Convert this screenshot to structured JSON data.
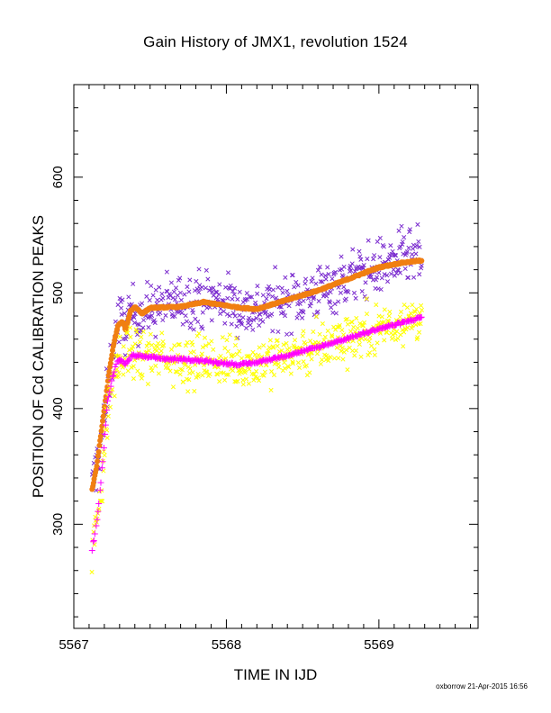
{
  "chart_data": {
    "type": "scatter",
    "title": "Gain History of JMX1, revolution 1524",
    "xlabel": "TIME IN IJD",
    "ylabel": "POSITION OF Cd CALIBRATION PEAKS",
    "xlim": [
      5567.0,
      5569.65
    ],
    "ylim": [
      210,
      680
    ],
    "xticks": [
      "5567",
      "5568",
      "5569"
    ],
    "yticks": [
      "300",
      "400",
      "500",
      "600"
    ],
    "grid": false,
    "legend": "none",
    "series": [
      {
        "marker": "x",
        "color": "#7b2ccf",
        "anchors": [
          [
            5567.12,
            330
          ],
          [
            5567.15,
            352
          ],
          [
            5567.2,
            390
          ],
          [
            5567.23,
            425
          ],
          [
            5567.27,
            460
          ],
          [
            5567.3,
            478
          ],
          [
            5567.33,
            470
          ],
          [
            5567.36,
            480
          ],
          [
            5567.45,
            482
          ],
          [
            5567.6,
            490
          ],
          [
            5567.8,
            496
          ],
          [
            5568.0,
            493
          ],
          [
            5568.1,
            486
          ],
          [
            5568.2,
            486
          ],
          [
            5568.4,
            494
          ],
          [
            5568.6,
            500
          ],
          [
            5568.8,
            513
          ],
          [
            5569.0,
            522
          ],
          [
            5569.15,
            530
          ],
          [
            5569.28,
            530
          ]
        ],
        "scatter": 12
      },
      {
        "marker": "line",
        "color": "#f07f12",
        "anchors": [
          [
            5567.12,
            330
          ],
          [
            5567.15,
            350
          ],
          [
            5567.2,
            400
          ],
          [
            5567.23,
            430
          ],
          [
            5567.26,
            455
          ],
          [
            5567.29,
            472
          ],
          [
            5567.32,
            475
          ],
          [
            5567.34,
            468
          ],
          [
            5567.37,
            484
          ],
          [
            5567.4,
            488
          ],
          [
            5567.45,
            482
          ],
          [
            5567.5,
            487
          ],
          [
            5567.7,
            488
          ],
          [
            5567.85,
            492
          ],
          [
            5568.0,
            489
          ],
          [
            5568.1,
            487
          ],
          [
            5568.2,
            486
          ],
          [
            5568.4,
            494
          ],
          [
            5568.6,
            502
          ],
          [
            5568.8,
            512
          ],
          [
            5569.0,
            522
          ],
          [
            5569.15,
            526
          ],
          [
            5569.28,
            528
          ]
        ],
        "scatter": 0
      },
      {
        "marker": "x",
        "color": "#ffff00",
        "anchors": [
          [
            5567.12,
            275
          ],
          [
            5567.15,
            300
          ],
          [
            5567.2,
            360
          ],
          [
            5567.23,
            405
          ],
          [
            5567.27,
            432
          ],
          [
            5567.3,
            440
          ],
          [
            5567.33,
            442
          ],
          [
            5567.37,
            448
          ],
          [
            5567.45,
            446
          ],
          [
            5567.6,
            444
          ],
          [
            5567.8,
            442
          ],
          [
            5568.0,
            440
          ],
          [
            5568.1,
            438
          ],
          [
            5568.2,
            440
          ],
          [
            5568.4,
            446
          ],
          [
            5568.6,
            452
          ],
          [
            5568.8,
            462
          ],
          [
            5569.0,
            470
          ],
          [
            5569.15,
            476
          ],
          [
            5569.28,
            480
          ]
        ],
        "scatter": 11
      },
      {
        "marker": "+",
        "color": "#ff00ff",
        "anchors": [
          [
            5567.12,
            278
          ],
          [
            5567.15,
            300
          ],
          [
            5567.18,
            340
          ],
          [
            5567.2,
            370
          ],
          [
            5567.22,
            405
          ],
          [
            5567.25,
            425
          ],
          [
            5567.28,
            440
          ],
          [
            5567.31,
            442
          ],
          [
            5567.34,
            438
          ],
          [
            5567.38,
            446
          ],
          [
            5567.45,
            445
          ],
          [
            5567.6,
            443
          ],
          [
            5567.8,
            442
          ],
          [
            5568.0,
            439
          ],
          [
            5568.1,
            438
          ],
          [
            5568.2,
            440
          ],
          [
            5568.4,
            446
          ],
          [
            5568.6,
            453
          ],
          [
            5568.8,
            461
          ],
          [
            5569.0,
            469
          ],
          [
            5569.15,
            474
          ],
          [
            5569.28,
            479
          ]
        ],
        "scatter": 0
      }
    ]
  },
  "footer_text": "oxborrow 21-Apr-2015 16:56"
}
